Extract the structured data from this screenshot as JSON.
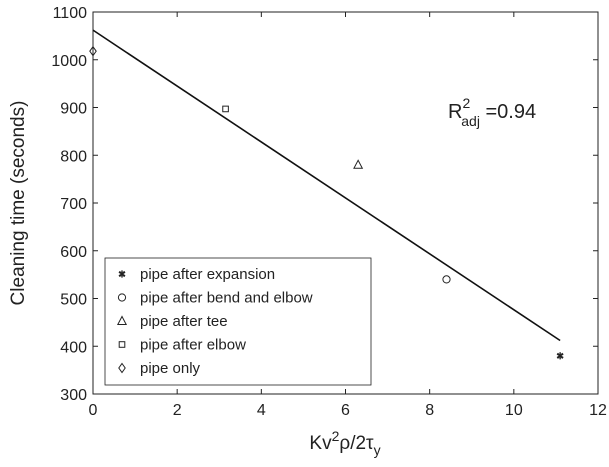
{
  "chart_data": {
    "type": "scatter",
    "xlabel": {
      "base": "Kv",
      "sup1": "2",
      "mid": "ρ/2τ",
      "sub": "y"
    },
    "ylabel": "Cleaning time (seconds)",
    "xlim": [
      0,
      12
    ],
    "ylim": [
      300,
      1100
    ],
    "xticks": [
      0,
      2,
      4,
      6,
      8,
      10,
      12
    ],
    "yticks": [
      300,
      400,
      500,
      600,
      700,
      800,
      900,
      1000,
      1100
    ],
    "grid": false,
    "legend_position": "bottom-left",
    "series": [
      {
        "name": "pipe after expansion",
        "marker": "asterisk",
        "x": [
          11.1
        ],
        "y": [
          380
        ]
      },
      {
        "name": "pipe after bend and elbow",
        "marker": "circle",
        "x": [
          8.4
        ],
        "y": [
          540
        ]
      },
      {
        "name": "pipe after tee",
        "marker": "triangle",
        "x": [
          6.3
        ],
        "y": [
          780
        ]
      },
      {
        "name": "pipe after elbow",
        "marker": "square",
        "x": [
          3.15
        ],
        "y": [
          897
        ]
      },
      {
        "name": "pipe only",
        "marker": "diamond",
        "x": [
          0.0
        ],
        "y": [
          1018
        ]
      }
    ],
    "fit_line": {
      "x": [
        0,
        11.1
      ],
      "y": [
        1062,
        412
      ]
    },
    "annotation": {
      "base": "R",
      "sup": "2",
      "sub": "adj",
      "text": " =0.94"
    }
  }
}
